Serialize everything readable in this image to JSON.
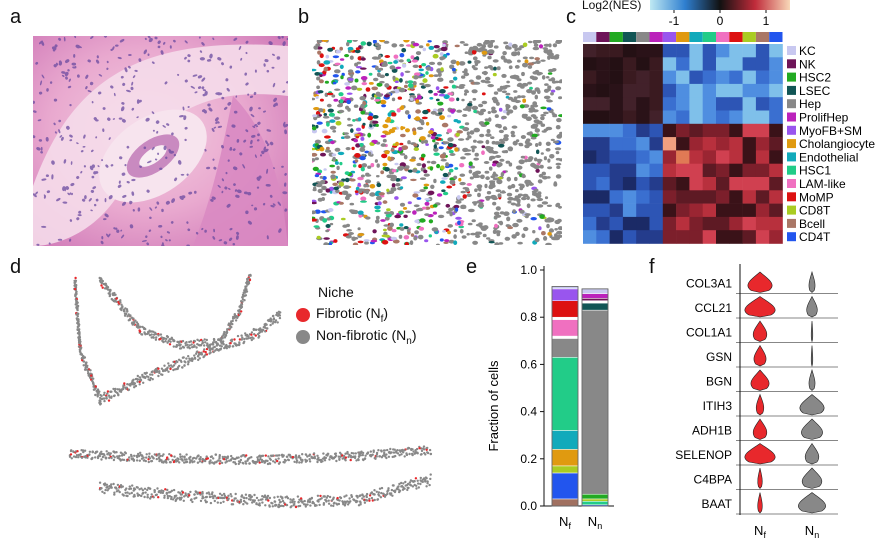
{
  "panels": {
    "a": "a",
    "b": "b",
    "c": "c",
    "d": "d",
    "e": "e",
    "f": "f"
  },
  "colors": {
    "fibrotic": "#e8282c",
    "nonfibrotic": "#888888"
  },
  "heatmap": {
    "colorbar_label": "Log2(NES)",
    "colorbar_ticks": [
      "-1",
      "0",
      "1"
    ],
    "row_labels": [
      "KC",
      "NK",
      "HSC2",
      "LSEC",
      "Hep",
      "ProlifHep",
      "MyoFB+SM",
      "Cholangiocyte",
      "Endothelial",
      "HSC1",
      "LAM-like",
      "MoMP",
      "CD8T",
      "Bcell",
      "CD4T"
    ],
    "label_colors": [
      "#c8c8f0",
      "#6e1458",
      "#22aa22",
      "#115555",
      "#888888",
      "#bb22bb",
      "#9955ee",
      "#e09a10",
      "#11aabb",
      "#22cc88",
      "#f070c0",
      "#dd1111",
      "#aacc22",
      "#aa7766",
      "#2255ee"
    ]
  },
  "legend_d": {
    "title": "Niche",
    "items": [
      {
        "label": "Fibrotic (N",
        "sub": "f",
        "tail": ")",
        "color": "#e8282c"
      },
      {
        "label": "Non-fibrotic (N",
        "sub": "n",
        "tail": ")",
        "color": "#888888"
      }
    ]
  },
  "chart_data": [
    {
      "type": "bar",
      "panel": "e",
      "ylabel": "Fraction of cells",
      "ylim": [
        0,
        1.0
      ],
      "y_ticks": [
        "0.0",
        "0.2",
        "0.4",
        "0.6",
        "0.8",
        "1.0"
      ],
      "categories": [
        {
          "main": "N",
          "sub": "f"
        },
        {
          "main": "N",
          "sub": "n"
        }
      ],
      "stacks": [
        [
          {
            "color": "#a07060",
            "value": 0.03
          },
          {
            "color": "#2255ee",
            "value": 0.11
          },
          {
            "color": "#aacc22",
            "value": 0.03
          },
          {
            "color": "#e09a10",
            "value": 0.07
          },
          {
            "color": "#11aabb",
            "value": 0.08
          },
          {
            "color": "#22cc88",
            "value": 0.31
          },
          {
            "color": "#888888",
            "value": 0.08
          },
          {
            "color": "#ffffff",
            "value": 0.01
          },
          {
            "color": "#f070c0",
            "value": 0.07
          },
          {
            "color": "#ffffff",
            "value": 0.01
          },
          {
            "color": "#dd1111",
            "value": 0.07
          },
          {
            "color": "#9955ee",
            "value": 0.05
          },
          {
            "color": "#c8c8f0",
            "value": 0.01
          }
        ],
        [
          {
            "color": "#2255ee",
            "value": 0.005
          },
          {
            "color": "#22cc88",
            "value": 0.015
          },
          {
            "color": "#aacc22",
            "value": 0.01
          },
          {
            "color": "#22aa22",
            "value": 0.02
          },
          {
            "color": "#888888",
            "value": 0.78
          },
          {
            "color": "#115555",
            "value": 0.03
          },
          {
            "color": "#ffffff",
            "value": 0.01
          },
          {
            "color": "#6e1458",
            "value": 0.01
          },
          {
            "color": "#bb22bb",
            "value": 0.02
          },
          {
            "color": "#c8c8f0",
            "value": 0.02
          }
        ]
      ]
    },
    {
      "type": "violin",
      "panel": "f",
      "genes": [
        "COL3A1",
        "CCL21",
        "COL1A1",
        "GSN",
        "BGN",
        "ITIH3",
        "ADH1B",
        "SELENOP",
        "C4BPA",
        "BAAT"
      ],
      "categories": [
        {
          "main": "N",
          "sub": "f"
        },
        {
          "main": "N",
          "sub": "n"
        }
      ],
      "fibrotic_widths": [
        0.8,
        1.0,
        0.45,
        0.4,
        0.6,
        0.25,
        0.45,
        1.0,
        0.15,
        0.15
      ],
      "nonfibrotic_widths": [
        0.2,
        0.35,
        0.05,
        0.05,
        0.2,
        0.8,
        0.7,
        0.45,
        0.65,
        0.9
      ]
    }
  ]
}
